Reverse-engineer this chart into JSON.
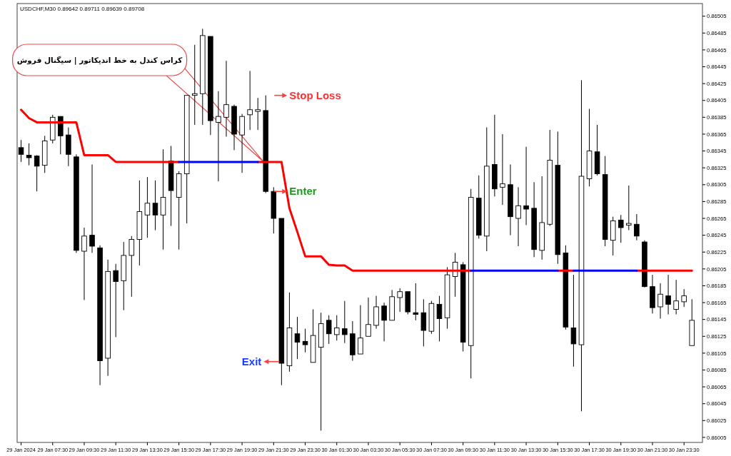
{
  "chart_data": {
    "type": "candlestick",
    "title": "USDCHF,M30 0.89642 0.89711 0.89639 0.89708",
    "x": [
      "2024-01-29T05:30",
      "2024-01-29T06:00",
      "2024-01-29T06:30",
      "2024-01-29T07:00",
      "2024-01-29T07:30",
      "2024-01-29T08:00",
      "2024-01-29T08:30",
      "2024-01-29T09:00",
      "2024-01-29T09:30",
      "2024-01-29T10:00",
      "2024-01-29T10:30",
      "2024-01-29T11:00",
      "2024-01-29T11:30",
      "2024-01-29T12:00",
      "2024-01-29T12:30",
      "2024-01-29T13:00",
      "2024-01-29T13:30",
      "2024-01-29T14:00",
      "2024-01-29T14:30",
      "2024-01-29T15:00",
      "2024-01-29T15:30",
      "2024-01-29T16:00",
      "2024-01-29T16:30",
      "2024-01-29T17:00",
      "2024-01-29T17:30",
      "2024-01-29T18:00",
      "2024-01-29T18:30",
      "2024-01-29T19:00",
      "2024-01-29T19:30",
      "2024-01-29T20:00",
      "2024-01-29T20:30",
      "2024-01-29T21:00",
      "2024-01-29T21:30",
      "2024-01-29T22:00",
      "2024-01-29T22:30",
      "2024-01-29T23:00",
      "2024-01-29T23:30",
      "2024-01-30T00:00",
      "2024-01-30T00:30",
      "2024-01-30T01:00",
      "2024-01-30T01:30",
      "2024-01-30T02:00",
      "2024-01-30T02:30",
      "2024-01-30T03:00",
      "2024-01-30T03:30",
      "2024-01-30T04:00",
      "2024-01-30T04:30",
      "2024-01-30T05:00",
      "2024-01-30T05:30",
      "2024-01-30T06:00",
      "2024-01-30T06:30",
      "2024-01-30T07:00",
      "2024-01-30T07:30",
      "2024-01-30T08:00",
      "2024-01-30T08:30",
      "2024-01-30T09:00",
      "2024-01-30T09:30",
      "2024-01-30T10:00",
      "2024-01-30T10:30",
      "2024-01-30T11:00",
      "2024-01-30T11:30",
      "2024-01-30T12:00",
      "2024-01-30T12:30",
      "2024-01-30T13:00",
      "2024-01-30T13:30",
      "2024-01-30T14:00",
      "2024-01-30T14:30",
      "2024-01-30T15:00",
      "2024-01-30T15:30",
      "2024-01-30T16:00",
      "2024-01-30T16:30",
      "2024-01-30T17:00",
      "2024-01-30T17:30",
      "2024-01-30T18:00",
      "2024-01-30T18:30",
      "2024-01-30T19:00",
      "2024-01-30T19:30",
      "2024-01-30T20:00",
      "2024-01-30T20:30",
      "2024-01-30T21:00",
      "2024-01-30T21:30",
      "2024-01-30T22:00",
      "2024-01-30T22:30",
      "2024-01-30T23:00",
      "2024-01-30T23:30",
      "2024-01-31T00:00"
    ],
    "ohlc": [
      [
        0.86349,
        0.86358,
        0.86332,
        0.86341
      ],
      [
        0.8634,
        0.86354,
        0.86328,
        0.86337
      ],
      [
        0.86339,
        0.8634,
        0.86297,
        0.86327
      ],
      [
        0.86328,
        0.86363,
        0.86319,
        0.86357
      ],
      [
        0.86358,
        0.86388,
        0.86354,
        0.86385
      ],
      [
        0.86386,
        0.86386,
        0.86341,
        0.86363
      ],
      [
        0.86364,
        0.86373,
        0.86327,
        0.86341
      ],
      [
        0.86338,
        0.86341,
        0.86224,
        0.86227
      ],
      [
        0.86226,
        0.86254,
        0.86168,
        0.86244
      ],
      [
        0.86245,
        0.86329,
        0.86224,
        0.86232
      ],
      [
        0.8623,
        0.86233,
        0.86067,
        0.86096
      ],
      [
        0.86099,
        0.86216,
        0.86078,
        0.86202
      ],
      [
        0.86203,
        0.86211,
        0.86124,
        0.8619
      ],
      [
        0.86191,
        0.86237,
        0.86156,
        0.86221
      ],
      [
        0.86221,
        0.86244,
        0.86172,
        0.8624
      ],
      [
        0.8624,
        0.8631,
        0.86209,
        0.86273
      ],
      [
        0.86269,
        0.86314,
        0.86242,
        0.86283
      ],
      [
        0.86283,
        0.8631,
        0.86251,
        0.86269
      ],
      [
        0.86269,
        0.86347,
        0.86228,
        0.8629
      ],
      [
        0.86333,
        0.86351,
        0.86256,
        0.86298
      ],
      [
        0.8629,
        0.86321,
        0.86228,
        0.86318
      ],
      [
        0.86318,
        0.86411,
        0.86259,
        0.86411
      ],
      [
        0.86411,
        0.86471,
        0.86376,
        0.86413
      ],
      [
        0.86413,
        0.8649,
        0.86376,
        0.86482
      ],
      [
        0.86481,
        0.86481,
        0.86364,
        0.86381
      ],
      [
        0.86379,
        0.86416,
        0.86309,
        0.86386
      ],
      [
        0.86385,
        0.86452,
        0.86362,
        0.864
      ],
      [
        0.86398,
        0.864,
        0.86346,
        0.86365
      ],
      [
        0.86364,
        0.86389,
        0.86319,
        0.86386
      ],
      [
        0.86388,
        0.8644,
        0.8637,
        0.86394
      ],
      [
        0.86392,
        0.86408,
        0.8637,
        0.86394
      ],
      [
        0.86393,
        0.86411,
        0.86295,
        0.86297
      ],
      [
        0.86297,
        0.86302,
        0.86247,
        0.86265
      ],
      [
        0.86265,
        0.86265,
        0.86067,
        0.86093
      ],
      [
        0.8609,
        0.86177,
        0.86083,
        0.86135
      ],
      [
        0.86128,
        0.86148,
        0.86098,
        0.86118
      ],
      [
        0.86119,
        0.86134,
        0.86106,
        0.86115
      ],
      [
        0.86094,
        0.86157,
        0.86094,
        0.86126
      ],
      [
        0.86112,
        0.86153,
        0.86013,
        0.8614
      ],
      [
        0.86144,
        0.8615,
        0.86116,
        0.86128
      ],
      [
        0.86127,
        0.8615,
        0.8612,
        0.86135
      ],
      [
        0.86134,
        0.86167,
        0.86117,
        0.86127
      ],
      [
        0.86128,
        0.86143,
        0.86096,
        0.86103
      ],
      [
        0.86104,
        0.86162,
        0.86104,
        0.86123
      ],
      [
        0.86125,
        0.86171,
        0.86125,
        0.86139
      ],
      [
        0.86138,
        0.86173,
        0.86134,
        0.8616
      ],
      [
        0.86161,
        0.86165,
        0.86119,
        0.86144
      ],
      [
        0.86144,
        0.8618,
        0.86144,
        0.86172
      ],
      [
        0.86171,
        0.86182,
        0.86154,
        0.86178
      ],
      [
        0.86178,
        0.86178,
        0.86151,
        0.86154
      ],
      [
        0.86153,
        0.86188,
        0.86144,
        0.86151
      ],
      [
        0.86153,
        0.86169,
        0.86113,
        0.86132
      ],
      [
        0.86131,
        0.86167,
        0.86128,
        0.86164
      ],
      [
        0.86163,
        0.86173,
        0.86119,
        0.86146
      ],
      [
        0.86147,
        0.86207,
        0.86134,
        0.86198
      ],
      [
        0.86196,
        0.86224,
        0.86172,
        0.86213
      ],
      [
        0.8621,
        0.86213,
        0.86107,
        0.86118
      ],
      [
        0.86114,
        0.863,
        0.86075,
        0.8629
      ],
      [
        0.86289,
        0.86316,
        0.86241,
        0.86245
      ],
      [
        0.86244,
        0.86373,
        0.86226,
        0.86327
      ],
      [
        0.86329,
        0.86388,
        0.86291,
        0.863
      ],
      [
        0.86302,
        0.86365,
        0.86281,
        0.86306
      ],
      [
        0.86305,
        0.86329,
        0.86245,
        0.86267
      ],
      [
        0.86265,
        0.86302,
        0.86232,
        0.8628
      ],
      [
        0.8628,
        0.8635,
        0.86257,
        0.86276
      ],
      [
        0.86277,
        0.86308,
        0.86219,
        0.86228
      ],
      [
        0.86227,
        0.86315,
        0.86216,
        0.8626
      ],
      [
        0.86258,
        0.8637,
        0.86256,
        0.86334
      ],
      [
        0.86328,
        0.86368,
        0.86211,
        0.86222
      ],
      [
        0.86224,
        0.86233,
        0.86133,
        0.86136
      ],
      [
        0.86135,
        0.86198,
        0.86089,
        0.86116
      ],
      [
        0.86115,
        0.86429,
        0.86036,
        0.86315
      ],
      [
        0.86312,
        0.86395,
        0.86303,
        0.86345
      ],
      [
        0.86344,
        0.86376,
        0.86316,
        0.86318
      ],
      [
        0.86317,
        0.86339,
        0.86232,
        0.8624
      ],
      [
        0.86239,
        0.86267,
        0.86221,
        0.86262
      ],
      [
        0.86263,
        0.86269,
        0.86236,
        0.86254
      ],
      [
        0.86257,
        0.86304,
        0.86251,
        0.86259
      ],
      [
        0.86258,
        0.8627,
        0.86239,
        0.86244
      ],
      [
        0.86237,
        0.86239,
        0.86183,
        0.86184
      ],
      [
        0.86184,
        0.86198,
        0.86152,
        0.86159
      ],
      [
        0.8616,
        0.86188,
        0.86146,
        0.86175
      ],
      [
        0.86173,
        0.86198,
        0.86151,
        0.86163
      ],
      [
        0.86157,
        0.86192,
        0.86151,
        0.86167
      ],
      [
        0.86166,
        0.86181,
        0.8616,
        0.86173
      ],
      [
        0.86114,
        0.86169,
        0.86114,
        0.86144
      ]
    ],
    "series": [
      {
        "type": "line",
        "color": "#ff0000",
        "values": [
          0.86394,
          0.86384,
          0.86379,
          0.86379,
          0.86379,
          0.86379,
          0.86379,
          0.86379,
          0.8634,
          0.8634,
          0.8634,
          0.8634,
          0.86332,
          0.86332,
          0.86332,
          0.86332,
          0.86332,
          0.86332,
          0.86332,
          0.86332,
          0.86332,
          null,
          null,
          null,
          null,
          null,
          null,
          null,
          null,
          null,
          0.86332,
          0.86332,
          0.86332,
          0.86332,
          0.86277,
          0.86249,
          0.8622,
          0.8622,
          0.8622,
          0.8621,
          0.86209,
          0.86209,
          0.86203,
          0.86203,
          0.86203,
          0.86203,
          0.86203,
          0.86203,
          0.86203,
          0.86203,
          0.86203,
          0.86203,
          0.86203,
          0.86203,
          0.86203,
          0.86203,
          0.86203,
          0.86203,
          null,
          null,
          null,
          null,
          null,
          null,
          null,
          null,
          null,
          null,
          0.86203,
          0.86203,
          0.86203,
          null,
          null,
          null,
          null,
          null,
          null,
          null,
          0.86203,
          0.86203,
          0.86203,
          0.86203,
          0.86203,
          0.86203,
          0.86203,
          0.86203
        ]
      },
      {
        "type": "line",
        "color": "#0000ff",
        "values": [
          null,
          null,
          null,
          null,
          null,
          null,
          null,
          null,
          null,
          null,
          null,
          null,
          null,
          null,
          null,
          null,
          null,
          null,
          null,
          null,
          0.86332,
          0.86332,
          0.86332,
          0.86332,
          0.86332,
          0.86332,
          0.86332,
          0.86332,
          0.86332,
          0.86332,
          0.86332,
          null,
          null,
          null,
          null,
          null,
          null,
          null,
          null,
          null,
          null,
          null,
          null,
          null,
          null,
          null,
          null,
          null,
          null,
          null,
          null,
          null,
          null,
          null,
          null,
          null,
          null,
          0.86203,
          0.86203,
          0.86203,
          0.86203,
          0.86203,
          0.86203,
          0.86203,
          0.86203,
          0.86203,
          0.86203,
          0.86203,
          0.86203,
          null,
          0.86203,
          0.86203,
          0.86203,
          0.86203,
          0.86203,
          0.86203,
          0.86203,
          0.86203,
          0.86203,
          null,
          null,
          null,
          null,
          null,
          null,
          null
        ]
      }
    ],
    "annotations": [
      {
        "text": "Stop Loss",
        "x": "2024-01-29T21:00",
        "y": 0.86411
      },
      {
        "text": "Enter",
        "x": "2024-01-29T21:00",
        "y": 0.86297
      },
      {
        "text": "Exit",
        "x": "2024-01-29T22:00",
        "y": 0.86095
      },
      "کراس کندل به خط اندیکاتور | سیگنال فروش"
    ],
    "xlim": [
      "2024-01-29T05:15",
      "2024-01-31T00:40"
    ],
    "ylim": [
      0.85999,
      0.8652
    ],
    "xticks": [
      {
        "value": "2024-01-29T05:30",
        "label": "29 Jan 2024"
      },
      {
        "value": "2024-01-29T07:30",
        "label": "29 Jan 07:30"
      },
      {
        "value": "2024-01-29T09:30",
        "label": "29 Jan 09:30"
      },
      {
        "value": "2024-01-29T11:30",
        "label": "29 Jan 11:30"
      },
      {
        "value": "2024-01-29T13:30",
        "label": "29 Jan 13:30"
      },
      {
        "value": "2024-01-29T15:30",
        "label": "29 Jan 15:30"
      },
      {
        "value": "2024-01-29T17:30",
        "label": "29 Jan 17:30"
      },
      {
        "value": "2024-01-29T19:30",
        "label": "29 Jan 19:30"
      },
      {
        "value": "2024-01-29T21:30",
        "label": "29 Jan 21:30"
      },
      {
        "value": "2024-01-29T23:30",
        "label": "29 Jan 23:30"
      },
      {
        "value": "2024-01-30T01:30",
        "label": "30 Jan 01:30"
      },
      {
        "value": "2024-01-30T03:30",
        "label": "30 Jan 03:30"
      },
      {
        "value": "2024-01-30T05:30",
        "label": "30 Jan 05:30"
      },
      {
        "value": "2024-01-30T07:30",
        "label": "30 Jan 07:30"
      },
      {
        "value": "2024-01-30T09:30",
        "label": "30 Jan 09:30"
      },
      {
        "value": "2024-01-30T11:30",
        "label": "30 Jan 11:30"
      },
      {
        "value": "2024-01-30T13:30",
        "label": "30 Jan 13:30"
      },
      {
        "value": "2024-01-30T15:30",
        "label": "30 Jan 15:30"
      },
      {
        "value": "2024-01-30T17:30",
        "label": "30 Jan 17:30"
      },
      {
        "value": "2024-01-30T19:30",
        "label": "30 Jan 19:30"
      },
      {
        "value": "2024-01-30T21:30",
        "label": "30 Jan 21:30"
      },
      {
        "value": "2024-01-30T23:30",
        "label": "30 Jan 23:30"
      }
    ],
    "yticks": [
      0.86005,
      0.86025,
      0.86045,
      0.86065,
      0.86085,
      0.86105,
      0.86125,
      0.86145,
      0.86165,
      0.86185,
      0.86205,
      0.86225,
      0.86245,
      0.86265,
      0.86285,
      0.86305,
      0.86325,
      0.86345,
      0.86365,
      0.86385,
      0.86405,
      0.86425,
      0.86445,
      0.86465,
      0.86485,
      0.86505
    ]
  }
}
